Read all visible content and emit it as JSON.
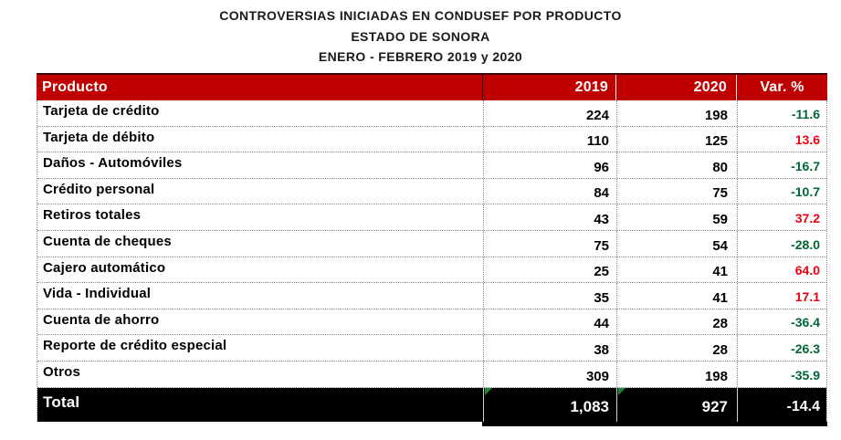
{
  "title": {
    "line1": "CONTROVERSIAS INICIADAS EN CONDUSEF POR PRODUCTO",
    "line2": "ESTADO DE SONORA",
    "line3": "ENERO - FEBRERO 2019 y 2020"
  },
  "colors": {
    "header_bg": "#C00000",
    "header_text": "#FFFFFF",
    "total_bg": "#000000",
    "total_text": "#FFFFFF",
    "var_negative": "#006633",
    "var_positive": "#EE0011"
  },
  "table": {
    "columns": [
      "Producto",
      "2019",
      "2020",
      "Var. %"
    ],
    "rows": [
      {
        "product": "Tarjeta de crédito",
        "y2019": "224",
        "y2020": "198",
        "var": "-11.6"
      },
      {
        "product": "Tarjeta de débito",
        "y2019": "110",
        "y2020": "125",
        "var": "13.6"
      },
      {
        "product": "Daños - Automóviles",
        "y2019": "96",
        "y2020": "80",
        "var": "-16.7"
      },
      {
        "product": "Crédito personal",
        "y2019": "84",
        "y2020": "75",
        "var": "-10.7"
      },
      {
        "product": "Retiros totales",
        "y2019": "43",
        "y2020": "59",
        "var": "37.2"
      },
      {
        "product": "Cuenta de cheques",
        "y2019": "75",
        "y2020": "54",
        "var": "-28.0"
      },
      {
        "product": "Cajero automático",
        "y2019": "25",
        "y2020": "41",
        "var": "64.0"
      },
      {
        "product": "Vida - Individual",
        "y2019": "35",
        "y2020": "41",
        "var": "17.1"
      },
      {
        "product": "Cuenta de ahorro",
        "y2019": "44",
        "y2020": "28",
        "var": "-36.4"
      },
      {
        "product": "Reporte de crédito especial",
        "y2019": "38",
        "y2020": "28",
        "var": "-26.3"
      },
      {
        "product": "Otros",
        "y2019": "309",
        "y2020": "198",
        "var": "-35.9"
      }
    ],
    "total": {
      "product": "Total",
      "y2019": "1,083",
      "y2020": "927",
      "var": "-14.4"
    }
  },
  "chart_data": {
    "type": "table",
    "title": "CONTROVERSIAS INICIADAS EN CONDUSEF POR PRODUCTO",
    "subtitle": "ESTADO DE SONORA",
    "period": "ENERO - FEBRERO 2019 y 2020",
    "categories": [
      "Tarjeta de crédito",
      "Tarjeta de débito",
      "Daños - Automóviles",
      "Crédito personal",
      "Retiros totales",
      "Cuenta de cheques",
      "Cajero automático",
      "Vida - Individual",
      "Cuenta de ahorro",
      "Reporte de crédito especial",
      "Otros"
    ],
    "series": [
      {
        "name": "2019",
        "values": [
          224,
          110,
          96,
          84,
          43,
          75,
          25,
          35,
          44,
          38,
          309
        ]
      },
      {
        "name": "2020",
        "values": [
          198,
          125,
          80,
          75,
          59,
          54,
          41,
          41,
          28,
          28,
          198
        ]
      },
      {
        "name": "Var. %",
        "values": [
          -11.6,
          13.6,
          -16.7,
          -10.7,
          37.2,
          -28.0,
          64.0,
          17.1,
          -36.4,
          -26.3,
          -35.9
        ]
      }
    ],
    "total": {
      "2019": 1083,
      "2020": 927,
      "var_pct": -14.4
    },
    "notes": "Negative variations shown in dark green, positive variations in red"
  }
}
